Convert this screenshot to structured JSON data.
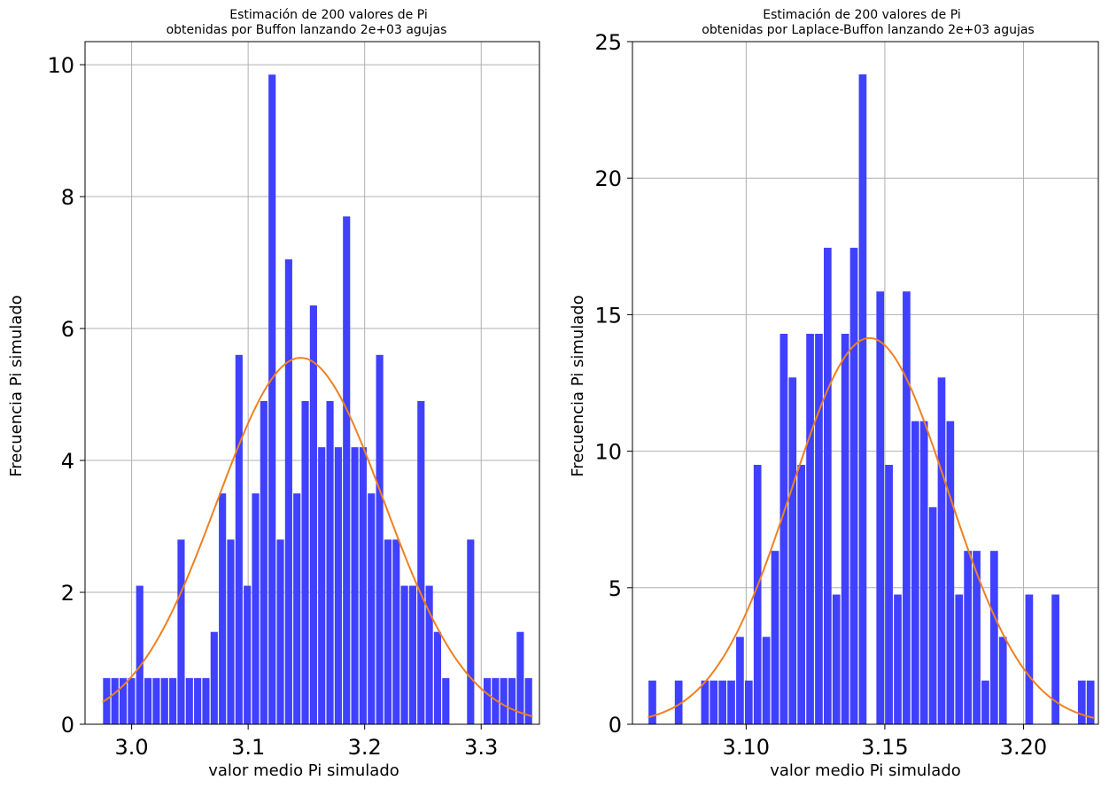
{
  "figure": {
    "background": "#ffffff",
    "bar_color": "#4040ff",
    "curve_color": "#f08020",
    "grid_color": "#b0b0b0"
  },
  "chart_data": [
    {
      "type": "bar",
      "title_line1": "Estimación de 200 valores de Pi",
      "title_line2": "obtenidas por Buffon lanzando 2e+03 agujas",
      "xlabel": "valor medio Pi simulado",
      "ylabel": "Frecuencia Pi simulado",
      "xlim": [
        2.96,
        3.35
      ],
      "ylim": [
        0,
        10.35
      ],
      "xticks": [
        3.0,
        3.1,
        3.2,
        3.3
      ],
      "xtick_labels": [
        "3.0",
        "3.1",
        "3.2",
        "3.3"
      ],
      "yticks": [
        0,
        2,
        4,
        6,
        8,
        10
      ],
      "ytick_labels": [
        "0",
        "2",
        "4",
        "6",
        "8",
        "10"
      ],
      "grid": true,
      "bin_start": 2.975,
      "bin_width": 0.0071,
      "values": [
        0.7,
        0.7,
        0.7,
        0.7,
        2.1,
        0.7,
        0.7,
        0.7,
        0.7,
        2.8,
        0.7,
        0.7,
        0.7,
        1.4,
        3.5,
        2.8,
        5.6,
        2.1,
        3.5,
        4.9,
        9.85,
        2.8,
        7.05,
        3.5,
        4.9,
        6.35,
        4.2,
        4.9,
        4.2,
        7.7,
        4.2,
        4.2,
        3.5,
        5.6,
        2.8,
        2.8,
        2.1,
        2.1,
        4.9,
        2.1,
        1.4,
        0.7,
        0,
        0,
        2.8,
        0,
        0.7,
        0.7,
        0.7,
        0.7,
        1.4,
        0.7
      ],
      "curve": {
        "mean": 3.145,
        "sd": 0.0718,
        "scale": 1.0
      }
    },
    {
      "type": "bar",
      "title_line1": "Estimación de 200 valores de Pi",
      "title_line2": "obtenidas por Laplace-Buffon lanzando 2e+03 agujas",
      "xlabel": "valor medio Pi simulado",
      "ylabel": "Frecuencia Pi simulado",
      "xlim": [
        3.059,
        3.227
      ],
      "ylim": [
        0,
        25
      ],
      "xticks": [
        3.1,
        3.15,
        3.2
      ],
      "xtick_labels": [
        "3.10",
        "3.15",
        "3.20"
      ],
      "yticks": [
        0,
        5,
        10,
        15,
        20,
        25
      ],
      "ytick_labels": [
        "0",
        "5",
        "10",
        "15",
        "20",
        "25"
      ],
      "grid": true,
      "bin_start": 3.0646,
      "bin_width": 0.00316,
      "values": [
        1.6,
        0,
        0,
        1.6,
        0,
        0,
        1.6,
        1.6,
        1.6,
        1.6,
        3.2,
        1.6,
        9.5,
        3.2,
        6.35,
        14.3,
        12.7,
        9.5,
        14.3,
        14.3,
        17.45,
        4.75,
        14.3,
        17.45,
        23.8,
        0,
        15.85,
        9.5,
        4.75,
        15.85,
        11.1,
        11.1,
        7.95,
        12.7,
        11.1,
        4.75,
        6.35,
        6.35,
        1.6,
        6.35,
        3.2,
        0,
        0,
        4.75,
        0,
        0,
        4.75,
        0,
        0,
        1.6,
        1.6
      ],
      "curve": {
        "mean": 3.1445,
        "sd": 0.0282,
        "scale": 1.0
      }
    }
  ]
}
